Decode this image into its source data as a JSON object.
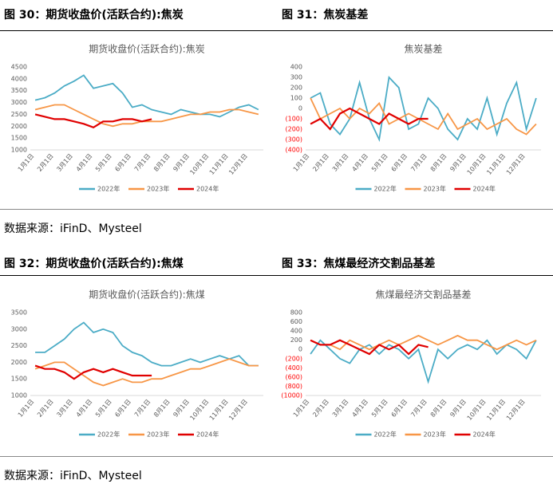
{
  "captions": [
    "图 30：期货收盘价(活跃合约):焦炭",
    "图 31：焦炭基差",
    "图 32：期货收盘价(活跃合约):焦煤",
    "图 33：焦煤最经济交割品基差"
  ],
  "sources": [
    "数据来源：iFinD、Mysteel",
    "数据来源：iFinD、Mysteel"
  ],
  "chart_data": [
    {
      "type": "line",
      "title": "期货收盘价(活跃合约):焦炭",
      "categories": [
        "1月1日",
        null,
        "2月1日",
        null,
        "3月1日",
        null,
        "4月1日",
        null,
        "5月1日",
        null,
        "6月1日",
        null,
        "7月1日",
        null,
        "8月1日",
        null,
        "9月1日",
        null,
        "10月1日",
        null,
        "11月1日",
        null,
        "12月1日",
        null
      ],
      "ylim": [
        1000,
        4500
      ],
      "yticks": [
        1000,
        1500,
        2000,
        2500,
        3000,
        3500,
        4000,
        4500
      ],
      "series": [
        {
          "name": "2022年",
          "color": "#4bacc6",
          "values": [
            3100,
            3200,
            3400,
            3700,
            3900,
            4150,
            3600,
            3700,
            3800,
            3400,
            2800,
            2900,
            2700,
            2600,
            2500,
            2700,
            2600,
            2500,
            2500,
            2400,
            2600,
            2800,
            2900,
            2700
          ]
        },
        {
          "name": "2023年",
          "color": "#f79646",
          "values": [
            2700,
            2800,
            2900,
            2900,
            2700,
            2500,
            2300,
            2100,
            2000,
            2100,
            2100,
            2200,
            2200,
            2200,
            2300,
            2400,
            2500,
            2500,
            2600,
            2600,
            2700,
            2700,
            2600,
            2500
          ]
        },
        {
          "name": "2024年",
          "color": "#e00000",
          "values": [
            2500,
            2400,
            2300,
            2300,
            2200,
            2100,
            1950,
            2200,
            2200,
            2300,
            2300,
            2200,
            2300,
            null,
            null,
            null,
            null,
            null,
            null,
            null,
            null,
            null,
            null,
            null
          ]
        }
      ]
    },
    {
      "type": "line",
      "title": "焦炭基差",
      "categories": [
        "1月1日",
        null,
        "2月1日",
        null,
        "3月1日",
        null,
        "4月1日",
        null,
        "5月1日",
        null,
        "6月1日",
        null,
        "7月1日",
        null,
        "8月1日",
        null,
        "9月1日",
        null,
        "10月1日",
        null,
        "11月1日",
        null,
        "12月1日",
        null
      ],
      "ylim": [
        -400,
        400
      ],
      "negative_label_color": "#ff0000",
      "yticks": [
        {
          "value": -400,
          "label": "(400)"
        },
        {
          "value": -300,
          "label": "(300)"
        },
        {
          "value": -200,
          "label": "(200)"
        },
        {
          "value": -100,
          "label": "(100)"
        },
        0,
        100,
        200,
        300,
        400
      ],
      "series": [
        {
          "name": "2022年",
          "color": "#4bacc6",
          "values": [
            100,
            150,
            -150,
            -250,
            -100,
            250,
            -100,
            -300,
            300,
            200,
            -200,
            -150,
            100,
            0,
            -200,
            -300,
            -100,
            -200,
            100,
            -250,
            50,
            250,
            -200,
            100
          ]
        },
        {
          "name": "2023年",
          "color": "#f79646",
          "values": [
            100,
            -100,
            -50,
            0,
            -100,
            0,
            -50,
            50,
            -150,
            -100,
            -50,
            -100,
            -150,
            -200,
            -50,
            -200,
            -150,
            -100,
            -200,
            -150,
            -100,
            -200,
            -250,
            -150
          ]
        },
        {
          "name": "2024年",
          "color": "#e00000",
          "values": [
            -150,
            -100,
            -200,
            -50,
            0,
            -50,
            -100,
            -150,
            -50,
            -100,
            -150,
            -100,
            -100,
            null,
            null,
            null,
            null,
            null,
            null,
            null,
            null,
            null,
            null,
            null
          ]
        }
      ]
    },
    {
      "type": "line",
      "title": "期货收盘价(活跃合约):焦煤",
      "categories": [
        "1月1日",
        null,
        "2月1日",
        null,
        "3月1日",
        null,
        "4月1日",
        null,
        "5月1日",
        null,
        "6月1日",
        null,
        "7月1日",
        null,
        "8月1日",
        null,
        "9月1日",
        null,
        "10月1日",
        null,
        "11月1日",
        null,
        "12月1日",
        null
      ],
      "ylim": [
        1000,
        3500
      ],
      "yticks": [
        1000,
        1500,
        2000,
        2500,
        3000,
        3500
      ],
      "series": [
        {
          "name": "2022年",
          "color": "#4bacc6",
          "values": [
            2300,
            2300,
            2500,
            2700,
            3000,
            3200,
            2900,
            3000,
            2900,
            2500,
            2300,
            2200,
            2000,
            1900,
            1900,
            2000,
            2100,
            2000,
            2100,
            2200,
            2100,
            2200,
            1900,
            1900
          ]
        },
        {
          "name": "2023年",
          "color": "#f79646",
          "values": [
            1800,
            1900,
            2000,
            2000,
            1800,
            1600,
            1400,
            1300,
            1400,
            1500,
            1400,
            1400,
            1500,
            1500,
            1600,
            1700,
            1800,
            1800,
            1900,
            2000,
            2100,
            2000,
            1900,
            1900
          ]
        },
        {
          "name": "2024年",
          "color": "#e00000",
          "values": [
            1900,
            1800,
            1800,
            1700,
            1500,
            1700,
            1800,
            1700,
            1800,
            1700,
            1600,
            1600,
            1600,
            null,
            null,
            null,
            null,
            null,
            null,
            null,
            null,
            null,
            null,
            null
          ]
        }
      ]
    },
    {
      "type": "line",
      "title": "焦煤最经济交割品基差",
      "categories": [
        "1月1日",
        null,
        "2月1日",
        null,
        "3月1日",
        null,
        "4月1日",
        null,
        "5月1日",
        null,
        "6月1日",
        null,
        "7月1日",
        null,
        "8月1日",
        null,
        "9月1日",
        null,
        "10月1日",
        null,
        "11月1日",
        null,
        "12月1日",
        null
      ],
      "ylim": [
        -1000,
        800
      ],
      "negative_label_color": "#ff0000",
      "yticks": [
        {
          "value": -1000,
          "label": "(1000)"
        },
        {
          "value": -800,
          "label": "(800)"
        },
        {
          "value": -600,
          "label": "(600)"
        },
        {
          "value": -400,
          "label": "(400)"
        },
        {
          "value": -200,
          "label": "(200)"
        },
        0,
        200,
        400,
        600,
        800
      ],
      "series": [
        {
          "name": "2022年",
          "color": "#4bacc6",
          "values": [
            -100,
            200,
            0,
            -200,
            -300,
            0,
            100,
            -100,
            100,
            0,
            -200,
            0,
            -700,
            0,
            -200,
            0,
            100,
            0,
            200,
            -100,
            100,
            0,
            -200,
            200
          ]
        },
        {
          "name": "2023年",
          "color": "#f79646",
          "values": [
            200,
            100,
            100,
            0,
            200,
            100,
            0,
            100,
            200,
            100,
            200,
            300,
            200,
            100,
            200,
            300,
            200,
            200,
            100,
            0,
            100,
            200,
            100,
            200
          ]
        },
        {
          "name": "2024年",
          "color": "#e00000",
          "values": [
            200,
            100,
            100,
            200,
            100,
            0,
            -100,
            100,
            0,
            100,
            -100,
            100,
            50,
            null,
            null,
            null,
            null,
            null,
            null,
            null,
            null,
            null,
            null,
            null
          ]
        }
      ]
    }
  ]
}
